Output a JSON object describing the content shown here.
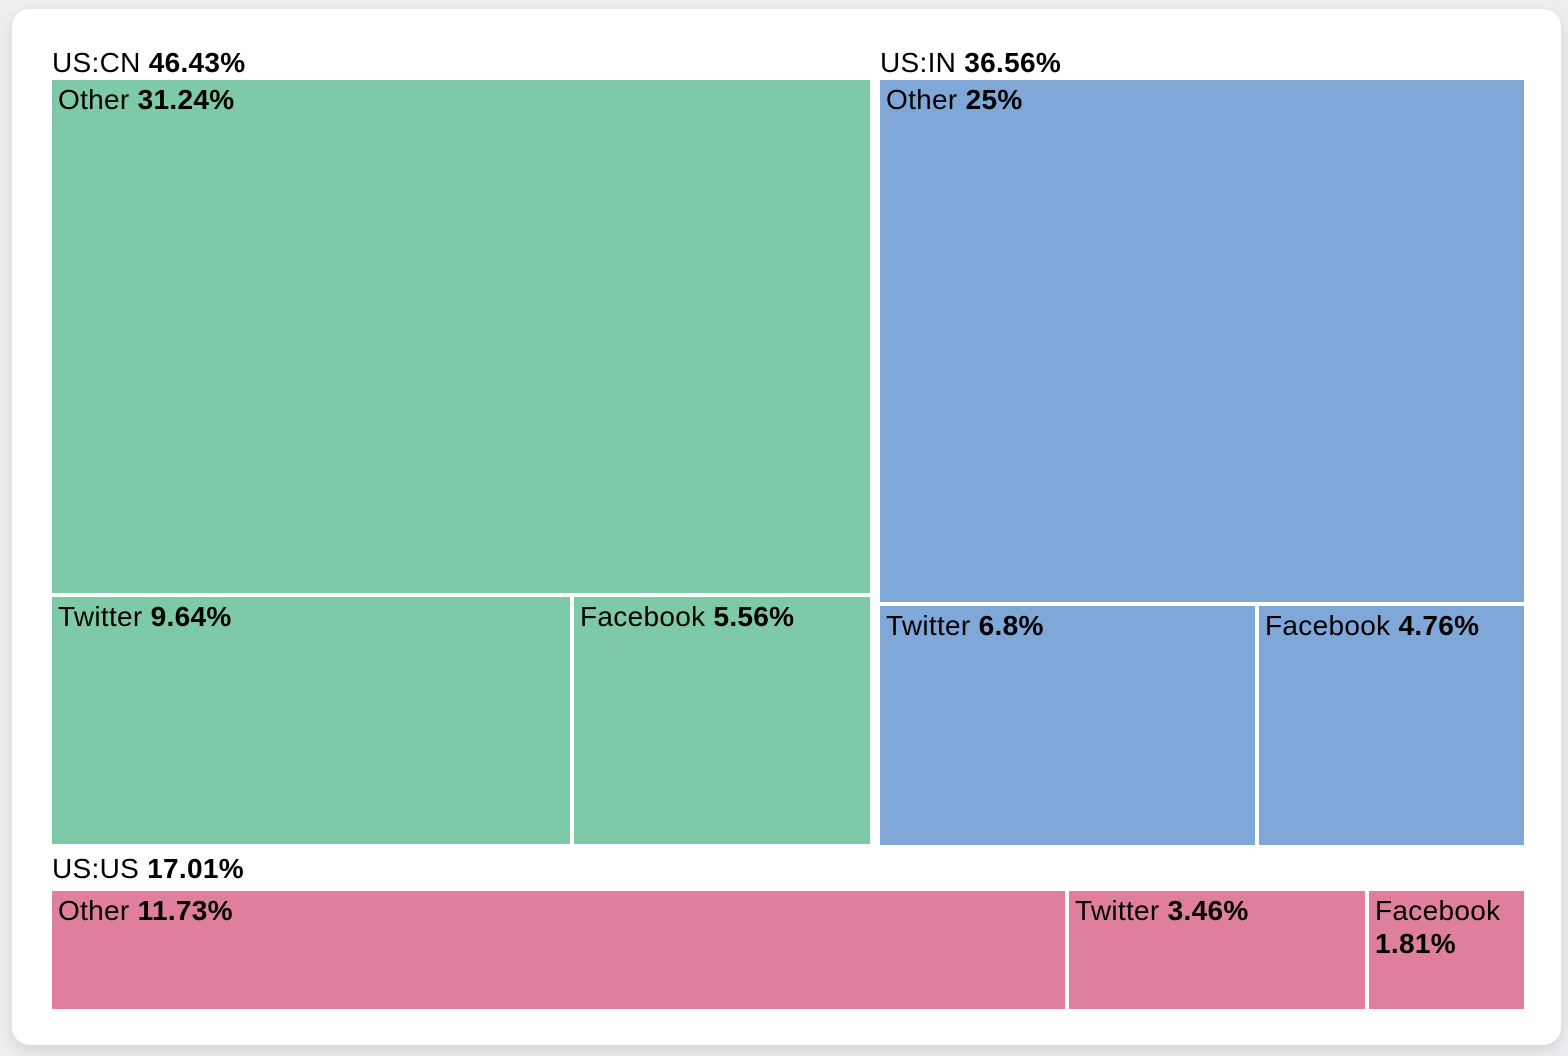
{
  "page": {
    "background_color": "#edeef0",
    "card_color": "#ffffff",
    "text_color": "#000000"
  },
  "chart_data": {
    "type": "treemap",
    "unit": "percent",
    "legend_position": "none",
    "groups": [
      {
        "label": "US:CN",
        "share_label": "46.43%",
        "value": 46.43,
        "color": "#7ec9a6",
        "children": [
          {
            "label": "Other",
            "share_label": "31.24%",
            "value": 31.24
          },
          {
            "label": "Twitter",
            "share_label": "9.64%",
            "value": 9.64
          },
          {
            "label": "Facebook",
            "share_label": "5.56%",
            "value": 5.56
          }
        ]
      },
      {
        "label": "US:IN",
        "share_label": "36.56%",
        "value": 36.56,
        "color": "#7fa8d9",
        "children": [
          {
            "label": "Other",
            "share_label": "25%",
            "value": 25
          },
          {
            "label": "Twitter",
            "share_label": "6.8%",
            "value": 6.8
          },
          {
            "label": "Facebook",
            "share_label": "4.76%",
            "value": 4.76
          }
        ]
      },
      {
        "label": "US:US",
        "share_label": "17.01%",
        "value": 17.01,
        "color": "#e07e9d",
        "children": [
          {
            "label": "Other",
            "share_label": "11.73%",
            "value": 11.73
          },
          {
            "label": "Twitter",
            "share_label": "3.46%",
            "value": 3.46
          },
          {
            "label": "Facebook",
            "share_label": "1.81%",
            "value": 1.81
          }
        ]
      }
    ]
  }
}
